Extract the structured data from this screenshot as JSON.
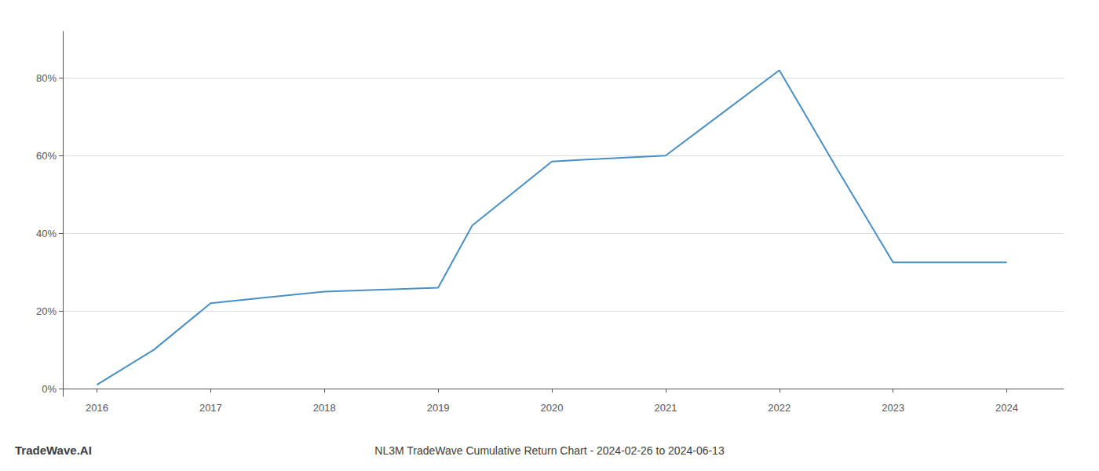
{
  "chart_data": {
    "type": "line",
    "title": "NL3M TradeWave Cumulative Return Chart - 2024-02-26 to 2024-06-13",
    "annotations": [
      "TradeWave.AI"
    ],
    "x": [
      2016,
      2016.5,
      2017,
      2017.5,
      2018,
      2018.5,
      2019,
      2019.3,
      2020,
      2020.3,
      2021,
      2021.5,
      2022,
      2022.5,
      2023,
      2023.5,
      2024
    ],
    "values": [
      0.01,
      0.1,
      0.22,
      0.235,
      0.25,
      0.255,
      0.26,
      0.42,
      0.585,
      0.59,
      0.6,
      0.71,
      0.82,
      0.57,
      0.325,
      0.325,
      0.325
    ],
    "color": "#4a90c4",
    "xlim": [
      2015.7,
      2024.5
    ],
    "xticks": [
      2016,
      2017,
      2018,
      2019,
      2020,
      2021,
      2022,
      2023,
      2024
    ],
    "ylim": [
      -0.02,
      0.92
    ],
    "yticks": [
      {
        "value": 0.0,
        "label": "0%"
      },
      {
        "value": 0.2,
        "label": "20%"
      },
      {
        "value": 0.4,
        "label": "40%"
      },
      {
        "value": 0.6,
        "label": "60%"
      },
      {
        "value": 0.8,
        "label": "80%"
      }
    ],
    "grid": true
  }
}
